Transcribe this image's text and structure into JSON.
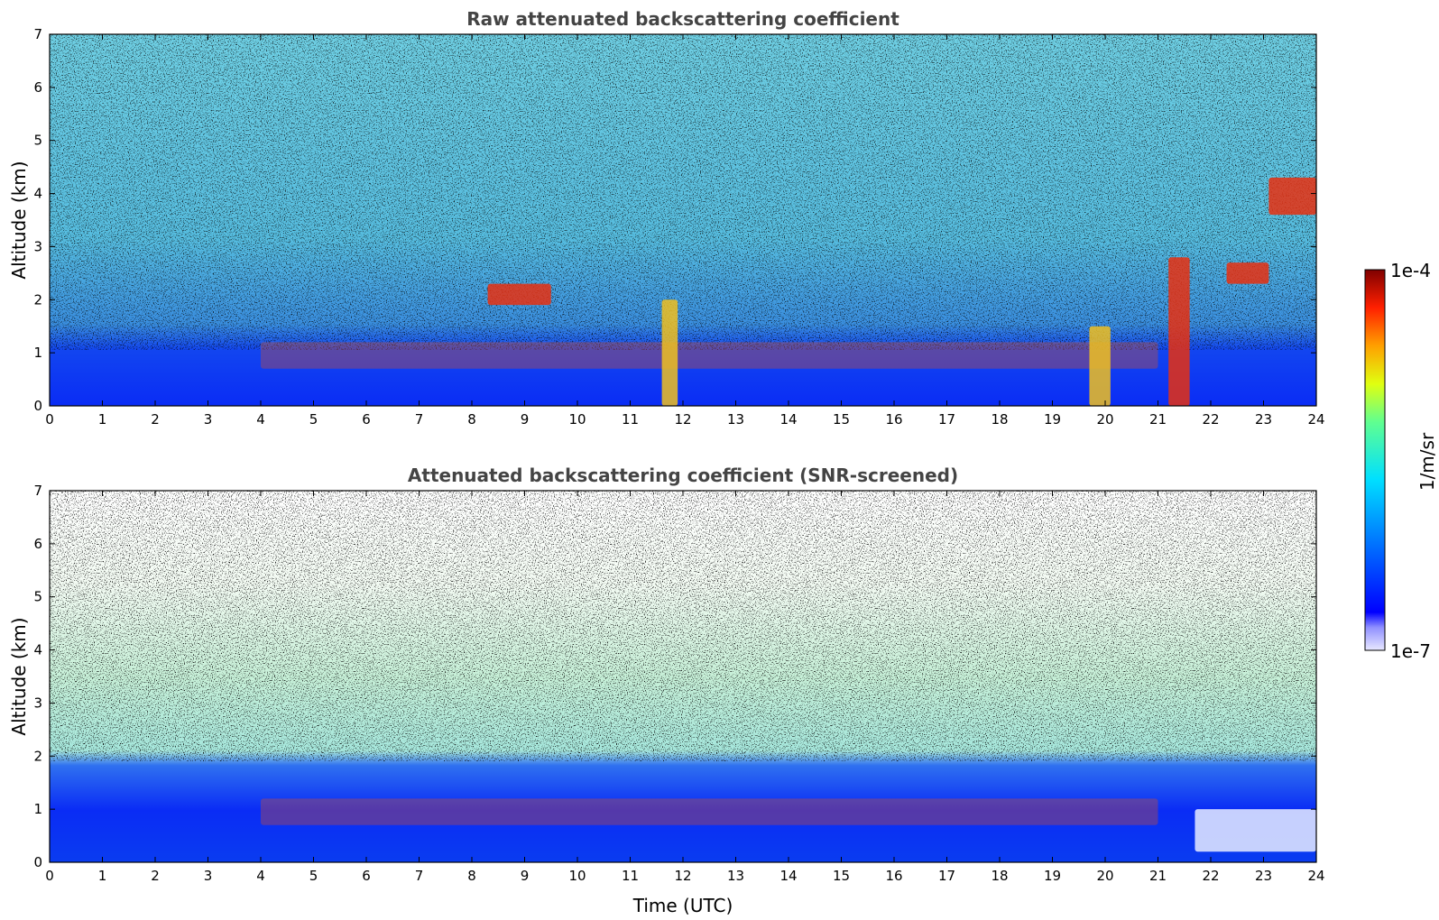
{
  "chart_data": [
    {
      "type": "heatmap",
      "title": "Raw attenuated backscattering coefficient",
      "xlabel": "",
      "ylabel": "Altitude (km)",
      "xlim": [
        0,
        24
      ],
      "ylim": [
        0,
        7
      ],
      "x_ticks": [
        "0",
        "1",
        "2",
        "3",
        "4",
        "5",
        "6",
        "7",
        "8",
        "9",
        "10",
        "11",
        "12",
        "13",
        "14",
        "15",
        "16",
        "17",
        "18",
        "19",
        "20",
        "21",
        "22",
        "23",
        "24"
      ],
      "y_ticks": [
        "0",
        "1",
        "2",
        "3",
        "4",
        "5",
        "6",
        "7"
      ],
      "grid": false,
      "features": [
        {
          "kind": "surface-layer",
          "time": [
            0,
            24
          ],
          "altitude_km": [
            0,
            0.7
          ],
          "level": "high-blue"
        },
        {
          "kind": "noise-background",
          "altitude_km": [
            0.7,
            7
          ],
          "level": "cyan-speckle"
        },
        {
          "kind": "aerosol-layer",
          "time": [
            4,
            21
          ],
          "altitude_km": [
            0.7,
            1.2
          ],
          "level": "red-patches"
        },
        {
          "kind": "cloud",
          "time": [
            8.3,
            9.5
          ],
          "altitude_km": [
            1.9,
            2.3
          ]
        },
        {
          "kind": "cloud",
          "time": [
            21.2,
            21.6
          ],
          "altitude_km": [
            0,
            2.8
          ]
        },
        {
          "kind": "cloud",
          "time": [
            22.3,
            23.1
          ],
          "altitude_km": [
            2.3,
            2.7
          ]
        },
        {
          "kind": "cloud",
          "time": [
            23.1,
            24
          ],
          "altitude_km": [
            3.6,
            4.3
          ]
        },
        {
          "kind": "precipitation-column",
          "time": [
            11.6,
            11.9
          ],
          "altitude_km": [
            0,
            2.0
          ]
        },
        {
          "kind": "precipitation-column",
          "time": [
            19.7,
            20.1
          ],
          "altitude_km": [
            0,
            1.5
          ]
        }
      ]
    },
    {
      "type": "heatmap",
      "title": "Attenuated backscattering coefficient (SNR-screened)",
      "xlabel": "Time (UTC)",
      "ylabel": "Altitude (km)",
      "xlim": [
        0,
        24
      ],
      "ylim": [
        0,
        7
      ],
      "x_ticks": [
        "0",
        "1",
        "2",
        "3",
        "4",
        "5",
        "6",
        "7",
        "8",
        "9",
        "10",
        "11",
        "12",
        "13",
        "14",
        "15",
        "16",
        "17",
        "18",
        "19",
        "20",
        "21",
        "22",
        "23",
        "24"
      ],
      "y_ticks": [
        "0",
        "1",
        "2",
        "3",
        "4",
        "5",
        "6",
        "7"
      ],
      "grid": false,
      "features": [
        {
          "kind": "surface-layer",
          "time": [
            0,
            24
          ],
          "altitude_km": [
            0,
            0.9
          ],
          "level": "high-blue"
        },
        {
          "kind": "screened-sparse-signal",
          "altitude_km": [
            1.8,
            6
          ],
          "level": "green-yellow-speckle"
        },
        {
          "kind": "aerosol-layer",
          "time": [
            4,
            21
          ],
          "altitude_km": [
            0.7,
            1.2
          ],
          "level": "red-patches"
        },
        {
          "kind": "low-signal-gap",
          "time": [
            21.7,
            24
          ],
          "altitude_km": [
            0.2,
            1.0
          ]
        }
      ]
    }
  ],
  "colorbar": {
    "label": "1/m/sr",
    "max_label": "1e-4",
    "min_label": "1e-7",
    "scale": "log",
    "range": [
      1e-07,
      0.0001
    ],
    "colormap": "jet"
  }
}
